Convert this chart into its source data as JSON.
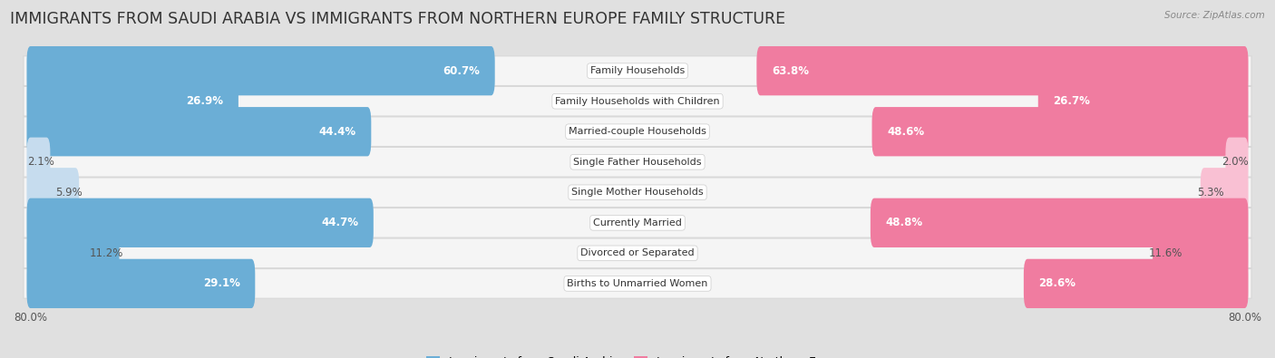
{
  "title": "IMMIGRANTS FROM SAUDI ARABIA VS IMMIGRANTS FROM NORTHERN EUROPE FAMILY STRUCTURE",
  "source": "Source: ZipAtlas.com",
  "categories": [
    "Family Households",
    "Family Households with Children",
    "Married-couple Households",
    "Single Father Households",
    "Single Mother Households",
    "Currently Married",
    "Divorced or Separated",
    "Births to Unmarried Women"
  ],
  "saudi_values": [
    60.7,
    26.9,
    44.4,
    2.1,
    5.9,
    44.7,
    11.2,
    29.1
  ],
  "northern_values": [
    63.8,
    26.7,
    48.6,
    2.0,
    5.3,
    48.8,
    11.6,
    28.6
  ],
  "saudi_labels": [
    "60.7%",
    "26.9%",
    "44.4%",
    "2.1%",
    "5.9%",
    "44.7%",
    "11.2%",
    "29.1%"
  ],
  "northern_labels": [
    "63.8%",
    "26.7%",
    "48.6%",
    "2.0%",
    "5.3%",
    "48.8%",
    "11.6%",
    "28.6%"
  ],
  "saudi_color": "#6BAED6",
  "northern_color": "#F07CA0",
  "saudi_color_light": "#C6DCEE",
  "northern_color_light": "#F9C0D3",
  "axis_max": 80.0,
  "legend_saudi": "Immigrants from Saudi Arabia",
  "legend_northern": "Immigrants from Northern Europe",
  "title_fontsize": 12.5,
  "bar_label_fontsize": 8.5,
  "cat_label_fontsize": 8.0,
  "axis_label_fontsize": 8.5,
  "bar_height": 0.62,
  "row_color": "#f0f0f0",
  "row_inner_color": "#fafafa",
  "fig_bg": "#e0e0e0"
}
